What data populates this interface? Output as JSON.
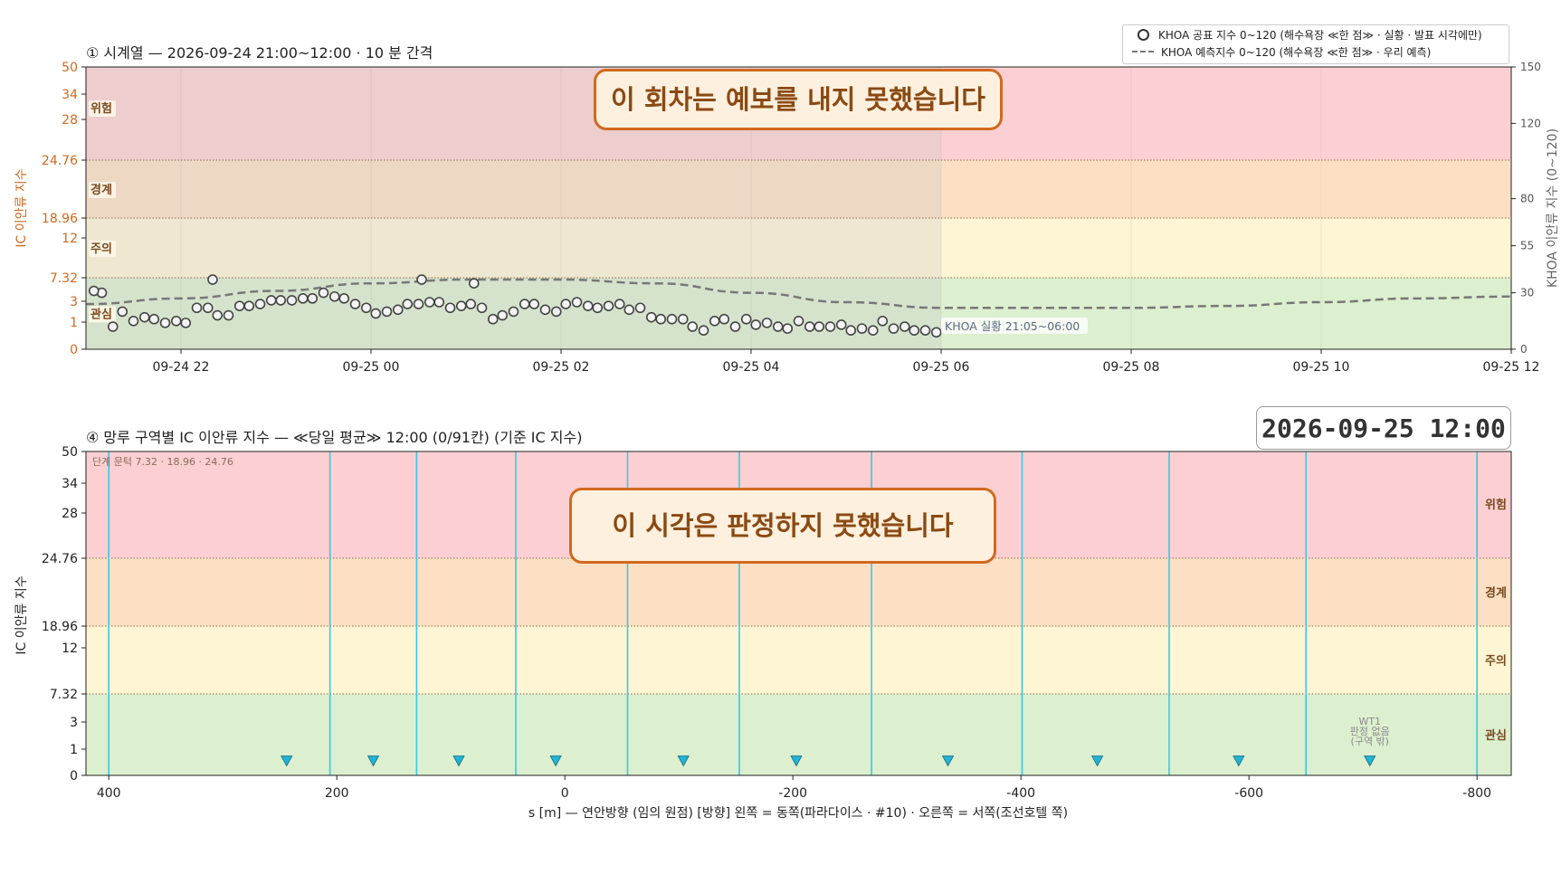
{
  "colors": {
    "zone_danger": "#fcd0d2",
    "zone_warning": "#fde0c4",
    "zone_caution": "#fdf5d3",
    "zone_interest": "#dcefcf",
    "past_shade": "#c7c7c7",
    "marker": "#444444",
    "forecast_line": "#777777",
    "left_axis": "#d2691e",
    "zone_label": "#7a4a1e",
    "section_line": "#38c8e8",
    "triangle": "#1fb5d8",
    "stamp_border": "#d2691e",
    "stamp_text": "#8b4a12"
  },
  "chart_data": [
    {
      "type": "scatter",
      "title": "① 시계열 — 2026-09-24 21:00~12:00 · 10 분 간격",
      "ylabel": "IC 이안류 지수",
      "y2label": "KHOA 이안류 지수 (0~120)",
      "yticks": [
        0,
        1,
        3,
        7.32,
        12,
        18.96,
        24.76,
        28,
        34,
        50
      ],
      "ytick_labels": [
        "0",
        "1",
        "3",
        "7.32",
        "12",
        "18.96",
        "24.76",
        "28",
        "34",
        "50"
      ],
      "y2ticks": [
        0,
        30,
        55,
        80,
        120,
        150
      ],
      "y2tick_labels": [
        "0",
        "30",
        "55",
        "80",
        "120",
        "150"
      ],
      "xlim": [
        "2026-09-24 21:00",
        "2026-09-25 12:00"
      ],
      "xticks": [
        "2026-09-24 22:00",
        "2026-09-25 00:00",
        "2026-09-25 02:00",
        "2026-09-25 04:00",
        "2026-09-25 06:00",
        "2026-09-25 08:00",
        "2026-09-25 10:00",
        "2026-09-25 12:00"
      ],
      "xtick_labels": [
        "09-24 22",
        "09-25 00",
        "09-25 02",
        "09-25 04",
        "09-25 06",
        "09-25 08",
        "09-25 10",
        "09-25 12"
      ],
      "zones": [
        {
          "label": "위험",
          "from": 24.76,
          "to": 50
        },
        {
          "label": "경계",
          "from": 18.96,
          "to": 24.76
        },
        {
          "label": "주의",
          "from": 7.32,
          "to": 18.96
        },
        {
          "label": "관심",
          "from": 0,
          "to": 7.32
        }
      ],
      "shaded_until": "2026-09-25 06:00",
      "stamp_text": "이 회차는 예보를 내지 못했습니다",
      "obs_label": "KHOA 실황 21:05~06:00",
      "series": [
        {
          "name": "KHOA 공표 지수 0~120 (해수욕장 ≪한 점≫ · 실황 · 발표 시각에만)",
          "marker": "circle",
          "axis": "khoa",
          "x": [
            "2026-09-24 21:10",
            "2026-09-24 21:17",
            "2026-09-24 21:23",
            "2026-09-24 21:30",
            "2026-09-24 21:37",
            "2026-09-24 21:43",
            "2026-09-24 21:50",
            "2026-09-24 21:57",
            "2026-09-24 22:03",
            "2026-09-24 22:10",
            "2026-09-24 22:17",
            "2026-09-24 22:23",
            "2026-09-24 22:30",
            "2026-09-24 22:37",
            "2026-09-24 22:43",
            "2026-09-24 22:50",
            "2026-09-24 22:57",
            "2026-09-24 23:03",
            "2026-09-24 23:10",
            "2026-09-24 23:17",
            "2026-09-24 23:23",
            "2026-09-24 23:30",
            "2026-09-24 23:37",
            "2026-09-24 23:43",
            "2026-09-24 23:50",
            "2026-09-24 23:57",
            "2026-09-25 00:03",
            "2026-09-25 00:10",
            "2026-09-25 00:17",
            "2026-09-25 00:23",
            "2026-09-25 00:30",
            "2026-09-25 00:37",
            "2026-09-25 00:43",
            "2026-09-25 00:50",
            "2026-09-25 00:57",
            "2026-09-25 01:03",
            "2026-09-25 01:10",
            "2026-09-25 01:17",
            "2026-09-25 01:23",
            "2026-09-25 01:30",
            "2026-09-25 01:37",
            "2026-09-25 01:43",
            "2026-09-25 01:50",
            "2026-09-25 01:57",
            "2026-09-25 02:03",
            "2026-09-25 02:10",
            "2026-09-25 02:17",
            "2026-09-25 02:23",
            "2026-09-25 02:30",
            "2026-09-25 02:37",
            "2026-09-25 02:43",
            "2026-09-25 02:50",
            "2026-09-25 02:57",
            "2026-09-25 03:03",
            "2026-09-25 03:10",
            "2026-09-25 03:17",
            "2026-09-25 03:23",
            "2026-09-25 03:30",
            "2026-09-25 03:37",
            "2026-09-25 03:43",
            "2026-09-25 03:50",
            "2026-09-25 03:57",
            "2026-09-25 04:03",
            "2026-09-25 04:10",
            "2026-09-25 04:17",
            "2026-09-25 04:23",
            "2026-09-25 04:30",
            "2026-09-25 04:37",
            "2026-09-25 04:43",
            "2026-09-25 04:50",
            "2026-09-25 04:57",
            "2026-09-25 05:03",
            "2026-09-25 05:10",
            "2026-09-25 05:17",
            "2026-09-25 05:23",
            "2026-09-25 05:30",
            "2026-09-25 05:37",
            "2026-09-25 05:43",
            "2026-09-25 05:50",
            "2026-09-25 05:57"
          ],
          "y": [
            30,
            12,
            20,
            15,
            17,
            16,
            14,
            15,
            14,
            22,
            22,
            18,
            18,
            23,
            23,
            24,
            26,
            26,
            26,
            27,
            27,
            30,
            28,
            27,
            24,
            22,
            19,
            20,
            21,
            24,
            24,
            25,
            25,
            22,
            23,
            24,
            22,
            16,
            18,
            20,
            24,
            24,
            21,
            20,
            24,
            25,
            23,
            22,
            23,
            24,
            21,
            22,
            17,
            16,
            16,
            16,
            12,
            10,
            15,
            16,
            12,
            16,
            13,
            14,
            12,
            11,
            15,
            12,
            12,
            12,
            13,
            10,
            11,
            10,
            15,
            11,
            12,
            10,
            10,
            9
          ],
          "y_extra_outliers": [
            {
              "x": "2026-09-24 22:20",
              "y": 37
            },
            {
              "x": "2026-09-25 00:32",
              "y": 37
            },
            {
              "x": "2026-09-25 01:05",
              "y": 35
            },
            {
              "x": "2026-09-24 21:05",
              "y": 31
            }
          ]
        },
        {
          "name": "KHOA 예측지수 0~120 (해수욕장 ≪한 점≫ · 우리 예측)",
          "style": "dashed",
          "axis": "khoa",
          "x": [
            "2026-09-24 21:00",
            "2026-09-24 22:00",
            "2026-09-24 23:00",
            "2026-09-25 00:00",
            "2026-09-25 01:00",
            "2026-09-25 02:00",
            "2026-09-25 03:00",
            "2026-09-25 04:00",
            "2026-09-25 05:00",
            "2026-09-25 06:00",
            "2026-09-25 07:00",
            "2026-09-25 08:00",
            "2026-09-25 09:00",
            "2026-09-25 10:00",
            "2026-09-25 11:00",
            "2026-09-25 12:00"
          ],
          "y": [
            24,
            27,
            31,
            35,
            37,
            37,
            35,
            30,
            25,
            22,
            22,
            22,
            23,
            25,
            27,
            28
          ]
        }
      ]
    },
    {
      "type": "scatter",
      "title": "④ 망루 구역별 IC 이안류 지수 — ≪당일 평균≫ 12:00  (0/91칸)   (기준 IC 지수)",
      "timestamp": "2026-09-25  12:00",
      "ylabel": "IC 이안류 지수",
      "xlabel": "s [m] — 연안방향 (임의 원점)     [방향] 왼쪽 = 동쪽(파라다이스 · #10) · 오른쪽 = 서쪽(조선호텔 쪽)",
      "xlim": [
        420,
        -830
      ],
      "xticks": [
        400,
        200,
        0,
        -200,
        -400,
        -600,
        -800
      ],
      "xtick_labels": [
        "400",
        "200",
        "0",
        "-200",
        "-400",
        "-600",
        "-800"
      ],
      "yticks": [
        0,
        1,
        3,
        7.32,
        12,
        18.96,
        24.76,
        28,
        34,
        50
      ],
      "ytick_labels": [
        "0",
        "1",
        "3",
        "7.32",
        "12",
        "18.96",
        "24.76",
        "28",
        "34",
        "50"
      ],
      "zones": [
        {
          "label": "위험",
          "from": 24.76,
          "to": 50
        },
        {
          "label": "경계",
          "from": 18.96,
          "to": 24.76
        },
        {
          "label": "주의",
          "from": 7.32,
          "to": 18.96
        },
        {
          "label": "관심",
          "from": 0,
          "to": 7.32
        }
      ],
      "threshold_note": "단계 문턱 7.32 · 18.96 · 24.76",
      "section_boundaries": [
        400,
        206,
        130,
        43,
        -55,
        -153,
        -269,
        -401,
        -530,
        -650,
        -800
      ],
      "tower_markers_s": [
        244,
        168,
        93,
        8,
        -104,
        -203,
        -336,
        -467,
        -591,
        -706
      ],
      "tower_marker_y": 0.5,
      "no_data_note": {
        "s": -706,
        "lines": [
          "WT1",
          "판정 없음",
          "(구역 밖)"
        ]
      },
      "stamp_text": "이 시각은 판정하지 못했습니다"
    }
  ],
  "legend": {
    "items": [
      "KHOA 공표 지수 0~120 (해수욕장 ≪한 점≫ · 실황 · 발표 시각에만)",
      "KHOA 예측지수 0~120 (해수욕장 ≪한 점≫ · 우리 예측)"
    ]
  }
}
